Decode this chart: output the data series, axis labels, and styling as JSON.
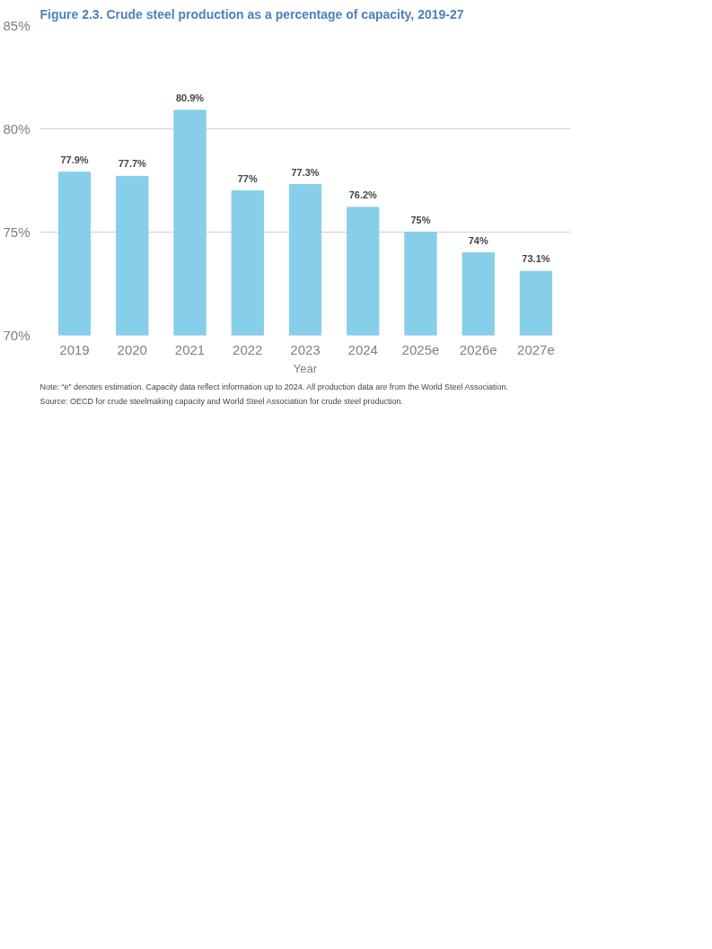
{
  "chart_data": {
    "type": "bar",
    "title": "Figure 2.3. Crude steel production as a percentage of capacity, 2019-27",
    "xlabel": "Year",
    "categories": [
      "2019",
      "2020",
      "2021",
      "2022",
      "2023",
      "2024",
      "2025e",
      "2026e",
      "2027e"
    ],
    "values": [
      77.9,
      77.7,
      80.9,
      77,
      77.3,
      76.2,
      75,
      74,
      73.1
    ],
    "value_labels": [
      "77.9%",
      "77.7%",
      "80.9%",
      "77%",
      "77.3%",
      "76.2%",
      "75%",
      "74%",
      "73.1%"
    ],
    "color": "#87ceeb",
    "ylim": [
      70,
      85
    ],
    "yticks": [
      {
        "value": 70,
        "label": "70%"
      },
      {
        "value": 75,
        "label": "75%"
      },
      {
        "value": 80,
        "label": "80%"
      },
      {
        "value": 85,
        "label": "85%"
      }
    ],
    "grid": "y",
    "annotations": [
      "Note: “e” denotes estimation. Capacity data reflect information up to 2024. All production data are from the World Steel Association.",
      "Source: OECD for crude steelmaking capacity and World Steel Association for crude steel production."
    ]
  }
}
